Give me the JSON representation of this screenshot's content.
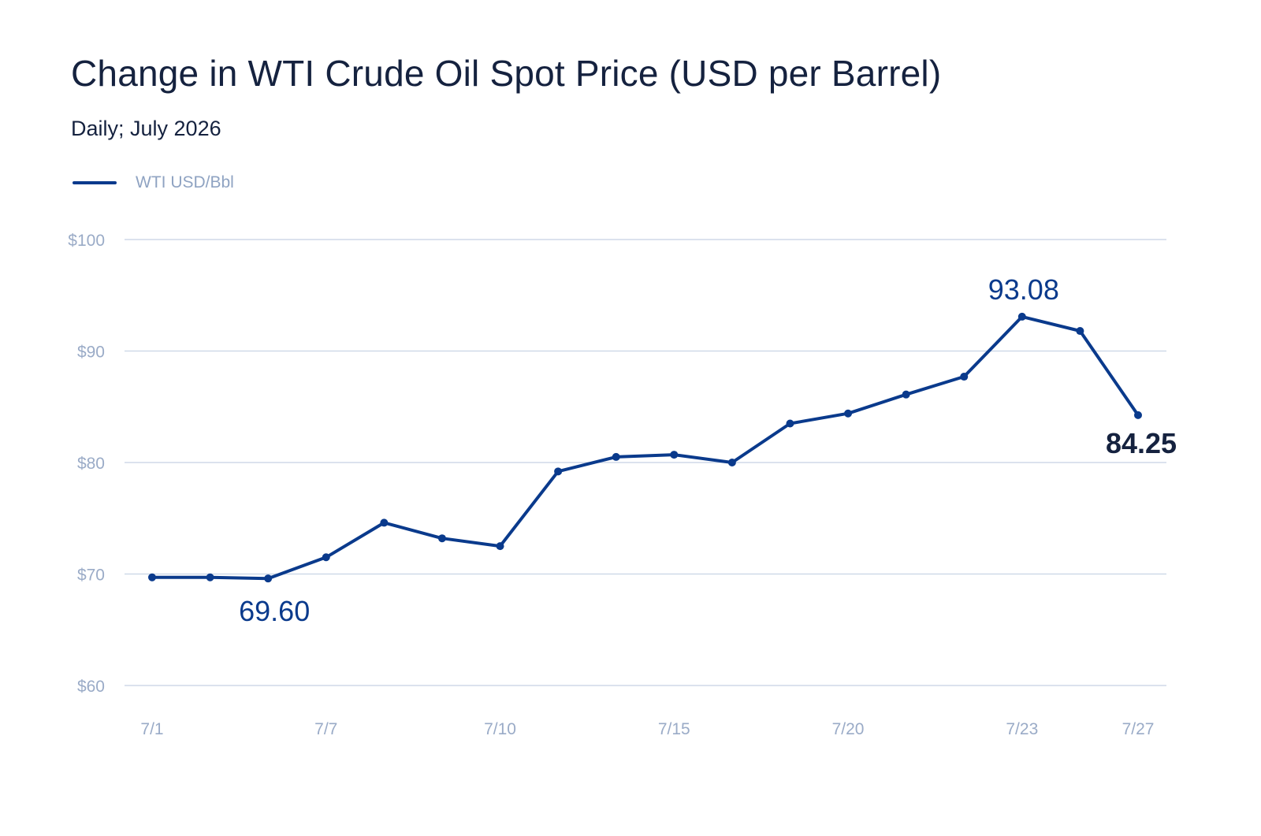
{
  "title": "Change in WTI Crude Oil Spot Price (USD per Barrel)",
  "subtitle": "Daily; July 2026",
  "colors": {
    "series": "#0a3a8c",
    "title": "#15223f",
    "tick": "#9aabc7",
    "grid": "#cfd9e8"
  },
  "chart_data": {
    "type": "line",
    "title": "Change in WTI Crude Oil Spot Price (USD per Barrel)",
    "subtitle": "Daily; July 2026",
    "xlabel": "",
    "ylabel": "",
    "ylim": [
      60,
      100
    ],
    "yticks": [
      100,
      90,
      80,
      70,
      60
    ],
    "ytick_labels": [
      "$100",
      "$90",
      "$80",
      "$70",
      "$60"
    ],
    "xtick_labels": [
      "7/1",
      "7/7",
      "7/10",
      "7/15",
      "7/20",
      "7/23",
      "7/27"
    ],
    "xtick_index": [
      0,
      3,
      6,
      9,
      12,
      15,
      17
    ],
    "grid": true,
    "legend": "top-left",
    "series": [
      {
        "name": "WTI USD/Bbl",
        "values": [
          69.7,
          69.7,
          69.6,
          71.5,
          74.6,
          73.2,
          72.5,
          79.2,
          80.5,
          80.7,
          80.0,
          83.5,
          84.4,
          86.1,
          87.7,
          93.08,
          91.8,
          84.25
        ]
      }
    ],
    "annotations": [
      {
        "index": 2,
        "text": "69.60",
        "style": "regular"
      },
      {
        "index": 15,
        "text": "93.08",
        "style": "regular"
      },
      {
        "index": 17,
        "text": "84.25",
        "style": "bold"
      }
    ]
  }
}
